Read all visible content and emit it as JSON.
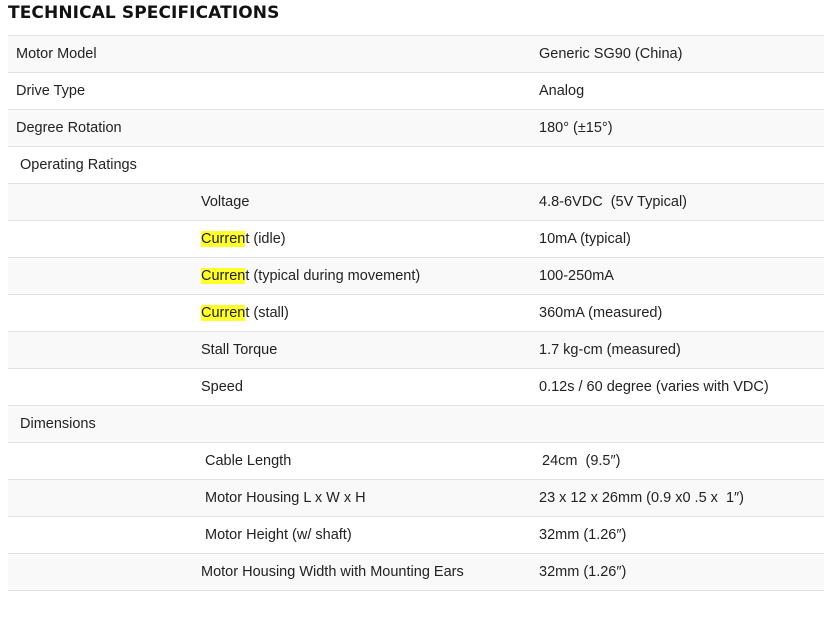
{
  "title": "TECHNICAL SPECIFICATIONS",
  "highlight": {
    "term": "Curren",
    "color": "#ffff2e"
  },
  "rows": [
    {
      "kind": "top",
      "label": "Motor Model",
      "value": "Generic SG90 (China)"
    },
    {
      "kind": "top",
      "label": "Drive Type",
      "value": "Analog"
    },
    {
      "kind": "top",
      "label": "Degree Rotation",
      "value": "180° (±15°)"
    },
    {
      "kind": "section",
      "label": "Operating Ratings",
      "value": ""
    },
    {
      "kind": "sub",
      "label": "Voltage",
      "value": "4.8-6VDC  (5V Typical)"
    },
    {
      "kind": "sub",
      "label_highlight": "Curren",
      "label_rest": "t (idle)",
      "value": "10mA (typical)"
    },
    {
      "kind": "sub",
      "label_highlight": "Curren",
      "label_rest": "t (typical during movement)",
      "value": "100-250mA"
    },
    {
      "kind": "sub",
      "label_highlight": "Curren",
      "label_rest": "t (stall)",
      "value": "360mA (measured)"
    },
    {
      "kind": "sub",
      "label": "Stall Torque",
      "value": "1.7 kg-cm (measured)"
    },
    {
      "kind": "sub",
      "label": "Speed",
      "value": "0.12s / 60 degree (varies with VDC)"
    },
    {
      "kind": "section",
      "label": "Dimensions",
      "value": ""
    },
    {
      "kind": "sub",
      "label": "Cable Length",
      "value": "24cm  (9.5″)"
    },
    {
      "kind": "sub",
      "label": "Motor Housing L x W x H",
      "value": "23 x 12 x 26mm (0.9 x0 .5 x  1″)"
    },
    {
      "kind": "sub",
      "label": "Motor Height (w/ shaft)",
      "value": "32mm (1.26″)"
    },
    {
      "kind": "sub",
      "label": "Motor Housing Width with Mounting Ears",
      "value": "32mm (1.26″)"
    }
  ]
}
